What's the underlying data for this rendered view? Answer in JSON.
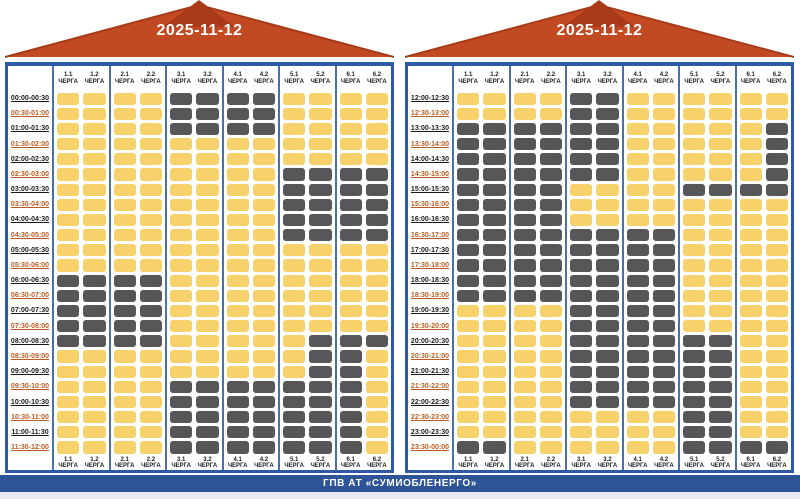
{
  "columns": [
    "1.1",
    "1.2",
    "2.1",
    "2.2",
    "3.1",
    "3.2",
    "4.1",
    "4.2",
    "5.1",
    "5.2",
    "6.1",
    "6.2"
  ],
  "queue_word": "ЧЕРГА",
  "cell_legend": {
    "Y": "power-on",
    "G": "outage"
  },
  "colors": {
    "cell_on": "#f7d169",
    "cell_off": "#57575a",
    "banner_red": "#c24a23",
    "banner_dark": "#a93a18",
    "panel_blue": "#2e59a4",
    "divider_blue": "#4a6fb0",
    "footer_bg": "#2d5497",
    "time_dark": "#1b1b1b",
    "time_orange": "#b85c22"
  },
  "panels": [
    {
      "date": "2025-11-12",
      "rows": [
        {
          "time": "00:00-00:30",
          "cells": "YYYYGGGGYYYY"
        },
        {
          "time": "00:30-01:00",
          "cells": "YYYYGGGGYYYY"
        },
        {
          "time": "01:00-01:30",
          "cells": "YYYYGGGGYYYY"
        },
        {
          "time": "01:30-02:00",
          "cells": "YYYYYYYYYYYY"
        },
        {
          "time": "02:00-02:30",
          "cells": "YYYYYYYYYYYY"
        },
        {
          "time": "02:30-03:00",
          "cells": "YYYYYYYYGGGG"
        },
        {
          "time": "03:00-03:30",
          "cells": "YYYYYYYYGGGG"
        },
        {
          "time": "03:30-04:00",
          "cells": "YYYYYYYYGGGG"
        },
        {
          "time": "04:00-04:30",
          "cells": "YYYYYYYYGGGG"
        },
        {
          "time": "04:30-05:00",
          "cells": "YYYYYYYYGGGG"
        },
        {
          "time": "05:00-05:30",
          "cells": "YYYYYYYYYYYY"
        },
        {
          "time": "05:30-06:00",
          "cells": "YYYYYYYYYYYY"
        },
        {
          "time": "06:00-06:30",
          "cells": "GGGGYYYYYYYY"
        },
        {
          "time": "06:30-07:00",
          "cells": "GGGGYYYYYYYY"
        },
        {
          "time": "07:00-07:30",
          "cells": "GGGGYYYYYYYY"
        },
        {
          "time": "07:30-08:00",
          "cells": "GGGGYYYYYYYY"
        },
        {
          "time": "08:00-08:30",
          "cells": "GGGGYYYYYGGG"
        },
        {
          "time": "08:30-09:00",
          "cells": "YYYYYYYYYGGY"
        },
        {
          "time": "09:00-09:30",
          "cells": "YYYYYYYYYGGY"
        },
        {
          "time": "09:30-10:00",
          "cells": "YYYYGGGGGGGY"
        },
        {
          "time": "10:00-10:30",
          "cells": "YYYYGGGGGGGY"
        },
        {
          "time": "10:30-11:00",
          "cells": "YYYYGGGGGGGY"
        },
        {
          "time": "11:00-11:30",
          "cells": "YYYYGGGGGGGY"
        },
        {
          "time": "11:30-12:00",
          "cells": "YYYYGGGGGGGY"
        }
      ]
    },
    {
      "date": "2025-11-12",
      "rows": [
        {
          "time": "12:00-12:30",
          "cells": "YYYYGGYYYYYY"
        },
        {
          "time": "12:30-13:00",
          "cells": "YYYYGGYYYYYY"
        },
        {
          "time": "13:00-13:30",
          "cells": "GGGGGGYYYYYG"
        },
        {
          "time": "13:30-14:00",
          "cells": "GGGGGGYYYYYG"
        },
        {
          "time": "14:00-14:30",
          "cells": "GGGGGGYYYYYG"
        },
        {
          "time": "14:30-15:00",
          "cells": "GGGGGGYYYYYG"
        },
        {
          "time": "15:00-15:30",
          "cells": "GGGGYYYYGGGG"
        },
        {
          "time": "15:30-16:00",
          "cells": "GGGGYYYYYYYY"
        },
        {
          "time": "16:00-16:30",
          "cells": "GGGGYYYYYYYY"
        },
        {
          "time": "16:30-17:00",
          "cells": "GGGGGGGGYYYY"
        },
        {
          "time": "17:00-17:30",
          "cells": "GGGGGGGGYYYY"
        },
        {
          "time": "17:30-18:00",
          "cells": "GGGGGGGGYYYY"
        },
        {
          "time": "18:00-18:30",
          "cells": "GGGGGGGGYYYY"
        },
        {
          "time": "18:30-19:00",
          "cells": "GGGGGGGGYYYY"
        },
        {
          "time": "19:00-19:30",
          "cells": "YYYYGGGGYYYY"
        },
        {
          "time": "19:30-20:00",
          "cells": "YYYYGGGGYYYY"
        },
        {
          "time": "20:00-20:30",
          "cells": "YYYYGGGGGGYY"
        },
        {
          "time": "20:30-21:00",
          "cells": "YYYYGGGGGGYY"
        },
        {
          "time": "21:00-21:30",
          "cells": "YYYYGGGGGGYY"
        },
        {
          "time": "21:30-22:00",
          "cells": "YYYYGGGGGGYY"
        },
        {
          "time": "22:00-22:30",
          "cells": "YYYYGGGGGGYY"
        },
        {
          "time": "22:30-23:00",
          "cells": "YYYYYYYYGGYY"
        },
        {
          "time": "23:00-23:30",
          "cells": "YYYYYYYYGGYY"
        },
        {
          "time": "23:30-00:00",
          "cells": "GGYYYYYYGGGG"
        }
      ]
    }
  ],
  "footer": {
    "title": "ГПВ АТ «СУМИОБЛЕНЕРГО»"
  }
}
